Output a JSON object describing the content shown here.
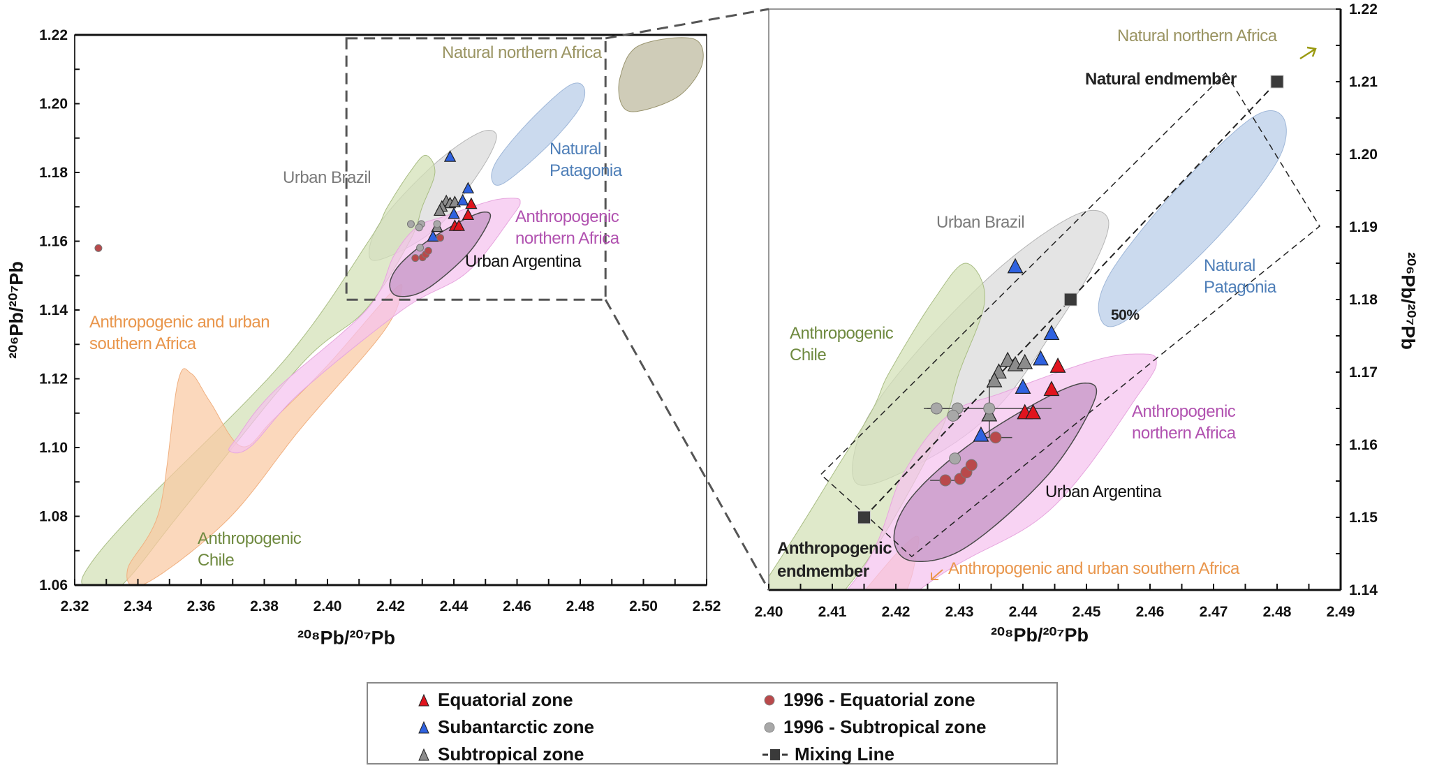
{
  "chart_data": [
    {
      "type": "scatter",
      "panel": "overview",
      "xlabel": "²⁰⁸Pb/²⁰⁷Pb",
      "ylabel": "²⁰⁶Pb/²⁰⁷Pb",
      "xlim": [
        2.32,
        2.52
      ],
      "ylim": [
        1.06,
        1.22
      ],
      "xticks": [
        "2.32",
        "2.34",
        "2.36",
        "2.38",
        "2.40",
        "2.42",
        "2.44",
        "2.46",
        "2.48",
        "2.50",
        "2.52"
      ],
      "yticks": [
        "1.06",
        "1.08",
        "1.10",
        "1.12",
        "1.14",
        "1.16",
        "1.18",
        "1.20",
        "1.22"
      ],
      "y_axis_side": "left",
      "zoom_box": {
        "xlim": [
          2.406,
          2.488
        ],
        "ylim": [
          1.143,
          1.219
        ]
      },
      "region_labels": {
        "natural_northern_africa": "Natural northern Africa",
        "natural_patagonia": [
          "Natural",
          "Patagonia"
        ],
        "urban_brazil": "Urban Brazil",
        "anthropogenic_northern_africa": [
          "Anthropogenic",
          "northern Africa"
        ],
        "urban_argentina": "Urban Argentina",
        "southern_africa": [
          "Anthropogenic and urban",
          "southern Africa"
        ],
        "anthropogenic_chile": [
          "Anthropogenic",
          "Chile"
        ]
      },
      "series": {
        "equatorial": [
          [
            2.4455,
            1.1708
          ],
          [
            2.4445,
            1.1676
          ],
          [
            2.4403,
            1.1644
          ],
          [
            2.4416,
            1.1644
          ]
        ],
        "subantarctic": [
          [
            2.4388,
            1.1845
          ],
          [
            2.4445,
            1.1753
          ],
          [
            2.4428,
            1.1718
          ],
          [
            2.44,
            1.1679
          ],
          [
            2.4334,
            1.1613
          ]
        ],
        "subtropical": [
          [
            2.4376,
            1.1716
          ],
          [
            2.4388,
            1.171
          ],
          [
            2.4403,
            1.1713
          ],
          [
            2.4362,
            1.17
          ],
          [
            2.4355,
            1.1688
          ],
          [
            2.4347,
            1.1641
          ]
        ],
        "equatorial_1996": [
          [
            2.4357,
            1.161
          ],
          [
            2.4278,
            1.1551
          ],
          [
            2.4301,
            1.1553
          ],
          [
            2.4311,
            1.1562
          ],
          [
            2.4319,
            1.1572
          ],
          [
            2.3275,
            1.158
          ]
        ],
        "subtropical_1996": [
          [
            2.4264,
            1.165
          ],
          [
            2.4297,
            1.165
          ],
          [
            2.429,
            1.164
          ],
          [
            2.4347,
            1.165
          ],
          [
            2.4293,
            1.1581
          ]
        ]
      }
    },
    {
      "type": "scatter",
      "panel": "zoom",
      "xlabel": "²⁰⁸Pb/²⁰⁷Pb",
      "ylabel": "²⁰⁶Pb/²⁰⁷Pb",
      "xlim": [
        2.4,
        2.49
      ],
      "ylim": [
        1.14,
        1.22
      ],
      "xticks": [
        "2.40",
        "2.41",
        "2.42",
        "2.43",
        "2.44",
        "2.45",
        "2.46",
        "2.47",
        "2.48",
        "2.49"
      ],
      "yticks": [
        "1.14",
        "1.15",
        "1.16",
        "1.17",
        "1.18",
        "1.19",
        "1.20",
        "1.21",
        "1.22"
      ],
      "y_axis_side": "right",
      "region_labels": {
        "natural_northern_africa": "Natural northern Africa",
        "natural_endmember": "Natural endmember",
        "urban_brazil": "Urban Brazil",
        "natural_patagonia": [
          "Natural",
          "Patagonia"
        ],
        "fifty_percent": "50%",
        "anthropogenic_chile": [
          "Anthropogenic",
          "Chile"
        ],
        "anthropogenic_northern_africa": [
          "Anthropogenic",
          "northern Africa"
        ],
        "urban_argentina": "Urban Argentina",
        "anthropogenic_endmember": [
          "Anthropogenic",
          "endmember"
        ],
        "southern_africa": "Anthropogenic and urban southern Africa"
      },
      "mixing_line": [
        [
          2.415,
          1.15
        ],
        [
          2.4475,
          1.18
        ],
        [
          2.48,
          1.21
        ]
      ],
      "mixing_line_labels": {
        "midpoint": "50%"
      },
      "mixing_envelope": [
        [
          2.4719,
          1.2112
        ],
        [
          2.4867,
          1.1901
        ],
        [
          2.4225,
          1.1446
        ],
        [
          2.4082,
          1.1559
        ]
      ],
      "series": {
        "equatorial": [
          [
            2.4455,
            1.1708
          ],
          [
            2.4445,
            1.1676
          ],
          [
            2.4403,
            1.1644
          ],
          [
            2.4416,
            1.1644
          ]
        ],
        "subantarctic": [
          [
            2.4388,
            1.1845
          ],
          [
            2.4445,
            1.1753
          ],
          [
            2.4428,
            1.1718
          ],
          [
            2.44,
            1.1679
          ],
          [
            2.4334,
            1.1613
          ]
        ],
        "subtropical": [
          [
            2.4376,
            1.1716
          ],
          [
            2.4388,
            1.171
          ],
          [
            2.4403,
            1.1713
          ],
          [
            2.4362,
            1.17
          ],
          [
            2.4355,
            1.1688
          ],
          [
            2.4347,
            1.1641
          ]
        ],
        "equatorial_1996": [
          [
            2.4357,
            1.161,
            0.0026
          ],
          [
            2.4278,
            1.1551,
            0.0024
          ],
          [
            2.4301,
            1.1553
          ],
          [
            2.4311,
            1.1562
          ],
          [
            2.4319,
            1.1572
          ]
        ],
        "subtropical_1996": [
          [
            2.4264,
            1.165,
            0.002
          ],
          [
            2.4297,
            1.165
          ],
          [
            2.429,
            1.164
          ],
          [
            2.4347,
            1.165,
            0.0098,
            0.004
          ],
          [
            2.4293,
            1.1581
          ]
        ]
      }
    }
  ],
  "regions": {
    "urban_brazil": {
      "color": "#d9d9d9",
      "stroke": "#b5b5b5",
      "points": [
        [
          2.4534,
          1.1911
        ],
        [
          2.4512,
          1.1848
        ],
        [
          2.4441,
          1.1748
        ],
        [
          2.4369,
          1.166
        ],
        [
          2.4283,
          1.1597
        ],
        [
          2.4168,
          1.1547
        ],
        [
          2.4132,
          1.1559
        ],
        [
          2.4154,
          1.1635
        ],
        [
          2.424,
          1.1735
        ],
        [
          2.4369,
          1.1848
        ],
        [
          2.4484,
          1.1917
        ]
      ]
    },
    "anthropogenic_chile": {
      "color": "#d3e0b6",
      "stroke": "#a9bd84",
      "points": [
        [
          2.3238,
          1.0645
        ],
        [
          2.3396,
          1.0817
        ],
        [
          2.386,
          1.125
        ],
        [
          2.413,
          1.16
        ],
        [
          2.419,
          1.17
        ],
        [
          2.426,
          1.18
        ],
        [
          2.431,
          1.185
        ],
        [
          2.434,
          1.18
        ],
        [
          2.43,
          1.17
        ],
        [
          2.426,
          1.16
        ],
        [
          2.412,
          1.14
        ],
        [
          2.3916,
          1.1241
        ],
        [
          2.3541,
          1.0817
        ],
        [
          2.3339,
          1.0592
        ],
        [
          2.3238,
          1.0592
        ]
      ]
    },
    "southern_africa": {
      "color": "#f9c9a2",
      "stroke": "#f0b080",
      "points": [
        [
          2.3367,
          1.0645
        ],
        [
          2.3468,
          1.0817
        ],
        [
          2.3526,
          1.1188
        ],
        [
          2.3569,
          1.1215
        ],
        [
          2.3627,
          1.1135
        ],
        [
          2.3728,
          1.1003
        ],
        [
          2.3829,
          1.1082
        ],
        [
          2.4002,
          1.1241
        ],
        [
          2.4204,
          1.1453
        ],
        [
          2.4233,
          1.1453
        ],
        [
          2.4175,
          1.1334
        ],
        [
          2.3916,
          1.1056
        ],
        [
          2.3685,
          1.0791
        ],
        [
          2.3425,
          1.0605
        ]
      ]
    },
    "anthropogenic_northern_africa": {
      "color": "#f5c2ef",
      "stroke": "#e6a6de",
      "points": [
        [
          2.4584,
          1.1725
        ],
        [
          2.461,
          1.1716
        ],
        [
          2.4584,
          1.1672
        ],
        [
          2.4441,
          1.1509
        ],
        [
          2.424,
          1.1402
        ],
        [
          2.3916,
          1.1162
        ],
        [
          2.3757,
          1.1003
        ],
        [
          2.369,
          1.099
        ],
        [
          2.3714,
          1.1029
        ],
        [
          2.3829,
          1.1162
        ],
        [
          2.4125,
          1.1402
        ],
        [
          2.4211,
          1.1559
        ],
        [
          2.4283,
          1.1641
        ],
        [
          2.4369,
          1.1672
        ],
        [
          2.4512,
          1.1716
        ]
      ]
    },
    "urban_argentina": {
      "color": "#c696c6",
      "stroke": "#4a4a4a",
      "points": [
        [
          2.4498,
          1.1685
        ],
        [
          2.4512,
          1.166
        ],
        [
          2.4441,
          1.156
        ],
        [
          2.4311,
          1.1459
        ],
        [
          2.4225,
          1.144
        ],
        [
          2.4197,
          1.1472
        ],
        [
          2.4225,
          1.1528
        ],
        [
          2.4311,
          1.1597
        ],
        [
          2.4426,
          1.166
        ]
      ]
    },
    "natural_patagonia": {
      "color": "#b7cce7",
      "stroke": "#9fb7d8",
      "points": [
        [
          2.481,
          1.205
        ],
        [
          2.48,
          1.199
        ],
        [
          2.47,
          1.188
        ],
        [
          2.456,
          1.177
        ],
        [
          2.452,
          1.178
        ],
        [
          2.454,
          1.184
        ],
        [
          2.464,
          1.195
        ],
        [
          2.476,
          1.205
        ]
      ]
    },
    "natural_northern_africa": {
      "color": "#bdb89c",
      "stroke": "#9a9570",
      "points": [
        [
          2.4926,
          1.2076
        ],
        [
          2.4984,
          1.2168
        ],
        [
          2.5157,
          1.2189
        ],
        [
          2.5186,
          1.2115
        ],
        [
          2.5113,
          1.2023
        ],
        [
          2.4984,
          1.1978
        ],
        [
          2.4932,
          1.1996
        ]
      ]
    }
  },
  "label_colors": {
    "natural_northern_africa": "#9a9462",
    "natural_patagonia": "#4f7fb8",
    "urban_brazil": "#7b7b7b",
    "anthropogenic_northern_africa": "#b152b0",
    "urban_argentina": "#111111",
    "southern_africa": "#e9964c",
    "anthropogenic_chile": "#6f8a40"
  },
  "legend": {
    "items": [
      {
        "label": "Equatorial zone",
        "marker": "triangle",
        "color": "#e0141e"
      },
      {
        "label": "Subantarctic zone",
        "marker": "triangle",
        "color": "#2f62e0"
      },
      {
        "label": "Subtropical zone",
        "marker": "triangle",
        "color": "#8c8c8c"
      },
      {
        "label": "1996 - Equatorial zone",
        "marker": "circle",
        "color": "#b9494b"
      },
      {
        "label": "1996 - Subtropical zone",
        "marker": "circle",
        "color": "#a8a8a8"
      },
      {
        "label": "Mixing Line",
        "marker": "square-dash",
        "color": "#3a3a3a"
      }
    ]
  }
}
